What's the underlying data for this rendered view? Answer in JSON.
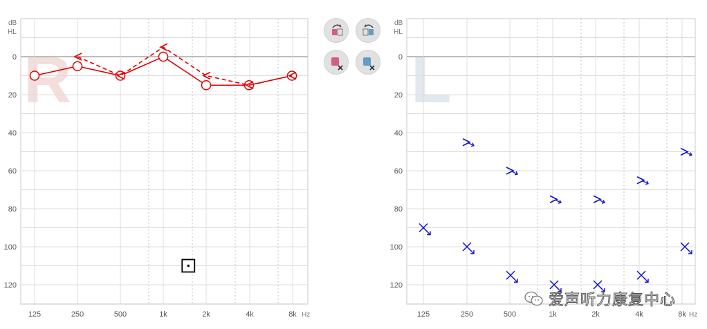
{
  "chart_data": [
    {
      "type": "audiogram",
      "ear": "R",
      "ear_label": "R",
      "y_unit_top": "dB",
      "y_unit_bottom": "HL",
      "x_unit": "Hz",
      "x_tick_labels": [
        "125",
        "250",
        "500",
        "1k",
        "2k",
        "4k",
        "8k"
      ],
      "y_tick_labels": [
        "0",
        "20",
        "40",
        "60",
        "80",
        "100",
        "120"
      ],
      "ylim": [
        -10,
        130
      ],
      "colors": {
        "series": "#e00000",
        "ear_letter": "#f3dede"
      },
      "series": [
        {
          "symbol": "circle",
          "line": "solid",
          "points": [
            [
              125,
              10
            ],
            [
              250,
              5
            ],
            [
              500,
              10
            ],
            [
              1000,
              0
            ],
            [
              2000,
              15
            ],
            [
              4000,
              15
            ],
            [
              8000,
              10
            ]
          ]
        },
        {
          "symbol": "left-caret",
          "line": "dashed",
          "points": [
            [
              250,
              0
            ],
            [
              500,
              10
            ],
            [
              1000,
              -5
            ],
            [
              2000,
              10
            ],
            [
              4000,
              15
            ],
            [
              8000,
              10
            ]
          ]
        },
        {
          "symbol": "boxed-dot",
          "line": "none",
          "points": [
            [
              1500,
              110
            ]
          ]
        }
      ]
    },
    {
      "type": "audiogram",
      "ear": "L",
      "ear_label": "L",
      "y_unit_top": "dB",
      "y_unit_bottom": "HL",
      "x_unit": "Hz",
      "x_tick_labels": [
        "125",
        "250",
        "500",
        "1k",
        "2k",
        "4k",
        "8k"
      ],
      "y_tick_labels": [
        "0",
        "20",
        "40",
        "60",
        "80",
        "100",
        "120"
      ],
      "ylim": [
        -10,
        130
      ],
      "colors": {
        "series": "#1010d0",
        "ear_letter": "#e2e9ee"
      },
      "series": [
        {
          "symbol": "cross-no-response",
          "line": "none",
          "points": [
            [
              125,
              90
            ],
            [
              250,
              100
            ],
            [
              500,
              115
            ],
            [
              1000,
              120
            ],
            [
              2000,
              120
            ],
            [
              4000,
              115
            ],
            [
              8000,
              100
            ]
          ]
        },
        {
          "symbol": "caret-no-response",
          "line": "none",
          "points": [
            [
              250,
              45
            ],
            [
              500,
              60
            ],
            [
              1000,
              75
            ],
            [
              2000,
              75
            ],
            [
              4000,
              65
            ],
            [
              8000,
              50
            ]
          ]
        }
      ]
    }
  ],
  "toolbar": {
    "buttons": [
      {
        "name": "copy-right-to-left-icon",
        "color": "#d0476b"
      },
      {
        "name": "copy-left-to-right-icon",
        "color": "#4a90c0"
      },
      {
        "name": "clear-right-icon",
        "color": "#d0476b"
      },
      {
        "name": "clear-left-icon",
        "color": "#4a90c0"
      }
    ]
  },
  "watermark": {
    "text": "爱声听力康复中心"
  }
}
